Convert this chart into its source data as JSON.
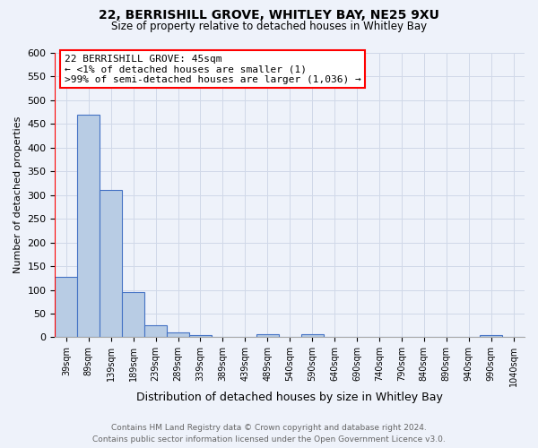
{
  "title_line1": "22, BERRISHILL GROVE, WHITLEY BAY, NE25 9XU",
  "title_line2": "Size of property relative to detached houses in Whitley Bay",
  "xlabel": "Distribution of detached houses by size in Whitley Bay",
  "ylabel": "Number of detached properties",
  "bar_labels": [
    "39sqm",
    "89sqm",
    "139sqm",
    "189sqm",
    "239sqm",
    "289sqm",
    "339sqm",
    "389sqm",
    "439sqm",
    "489sqm",
    "540sqm",
    "590sqm",
    "640sqm",
    "690sqm",
    "740sqm",
    "790sqm",
    "840sqm",
    "890sqm",
    "940sqm",
    "990sqm",
    "1040sqm"
  ],
  "bar_values": [
    128,
    470,
    310,
    96,
    25,
    10,
    5,
    0,
    0,
    6,
    0,
    6,
    0,
    0,
    0,
    0,
    0,
    0,
    0,
    5,
    0
  ],
  "bar_color": "#b8cce4",
  "bar_edge_color": "#4472c4",
  "ylim": [
    0,
    600
  ],
  "yticks": [
    0,
    50,
    100,
    150,
    200,
    250,
    300,
    350,
    400,
    450,
    500,
    550,
    600
  ],
  "grid_color": "#d0d8e8",
  "annotation_title": "22 BERRISHILL GROVE: 45sqm",
  "annotation_line2": "← <1% of detached houses are smaller (1)",
  "annotation_line3": ">99% of semi-detached houses are larger (1,036) →",
  "footer_line1": "Contains HM Land Registry data © Crown copyright and database right 2024.",
  "footer_line2": "Contains public sector information licensed under the Open Government Licence v3.0.",
  "bg_color": "#eef2fa"
}
